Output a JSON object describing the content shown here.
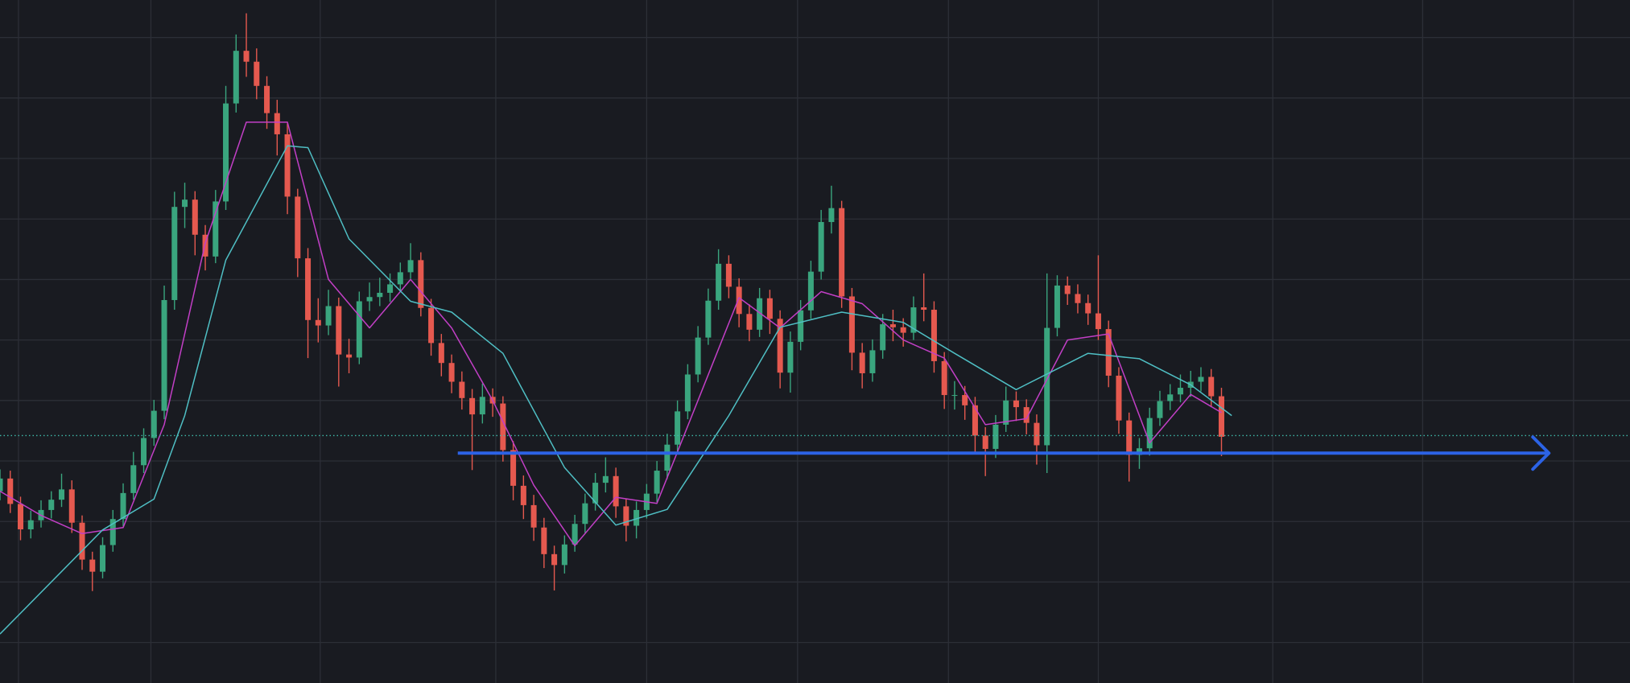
{
  "chart_data": {
    "type": "candlestick",
    "background": "#191b21",
    "grid": true,
    "grid_color": "#2c2f37",
    "up_color": "#3aa57e",
    "down_color": "#e5594f",
    "xlim": [
      0,
      158.8
    ],
    "ylim": [
      -6.7,
      106.2
    ],
    "xticks": [
      1.8,
      14.7,
      31.2,
      48.3,
      63,
      77.7,
      92.4,
      107,
      124,
      138.6,
      153.3
    ],
    "yticks": [
      0,
      10,
      20,
      30,
      40,
      50,
      60,
      70,
      80,
      90,
      100
    ],
    "open": [
      25.0,
      27.1,
      22.9,
      18.7,
      20.2,
      21.9,
      23.6,
      25.3,
      19.8,
      13.7,
      11.7,
      16.1,
      20.4,
      24.7,
      29.3,
      33.8,
      38.3,
      56.6,
      72.0,
      73.2,
      67.4,
      63.8,
      72.9,
      89.1,
      97.8,
      96.0,
      92.0,
      87.5,
      84.0,
      73.7,
      63.5,
      53.3,
      52.4,
      55.6,
      47.6,
      47.1,
      56.4,
      57.1,
      57.8,
      59.2,
      61.2,
      63.2,
      55.3,
      49.5,
      46.2,
      43.1,
      40.4,
      37.7,
      40.6,
      39.5,
      31.8,
      25.9,
      22.7,
      19.0,
      14.6,
      12.8,
      16.2,
      19.6,
      23.0,
      26.4,
      27.5,
      22.5,
      19.3,
      21.9,
      24.6,
      28.4,
      32.7,
      38.2,
      44.3,
      50.4,
      56.5,
      62.6,
      58.8,
      54.3,
      51.7,
      56.9,
      53.5,
      44.6,
      49.7,
      54.9,
      61.3,
      69.5,
      71.8,
      57.2,
      47.9,
      44.5,
      48.3,
      52.6,
      52.1,
      51.2,
      55.4,
      55.0,
      46.5,
      40.9,
      40.9,
      39.2,
      34.2,
      32.0,
      36.0,
      40.0,
      38.9,
      36.3,
      32.6,
      52.0,
      59.0,
      57.6,
      56.1,
      54.4,
      51.8,
      44.1,
      36.7,
      31.0,
      32.1,
      37.1,
      39.9,
      41.0,
      42.1,
      43.1,
      43.9,
      40.7
    ],
    "close": [
      27.1,
      22.9,
      18.7,
      20.2,
      21.9,
      23.6,
      25.3,
      19.8,
      13.7,
      11.7,
      16.1,
      20.4,
      24.7,
      29.3,
      33.8,
      38.3,
      56.6,
      72.0,
      73.2,
      67.4,
      63.8,
      72.9,
      89.1,
      97.8,
      96.0,
      92.0,
      87.5,
      84.0,
      73.7,
      63.5,
      53.3,
      52.4,
      55.6,
      47.6,
      47.1,
      56.4,
      57.1,
      57.8,
      59.2,
      61.2,
      63.2,
      55.3,
      49.5,
      46.2,
      43.1,
      40.4,
      37.7,
      40.6,
      39.5,
      31.8,
      25.9,
      22.7,
      19.0,
      14.6,
      12.8,
      16.2,
      19.6,
      23.0,
      26.4,
      27.5,
      22.5,
      19.3,
      21.9,
      24.6,
      28.4,
      32.7,
      38.2,
      44.3,
      50.4,
      56.5,
      62.6,
      58.8,
      54.3,
      51.7,
      56.9,
      53.5,
      44.6,
      49.7,
      54.9,
      61.3,
      69.5,
      71.8,
      57.2,
      47.9,
      44.5,
      48.3,
      52.6,
      52.1,
      51.2,
      55.4,
      55.0,
      46.5,
      40.9,
      40.9,
      39.2,
      34.2,
      32.0,
      36.0,
      40.0,
      38.9,
      36.3,
      32.6,
      52.0,
      59.0,
      57.6,
      56.1,
      54.4,
      51.8,
      44.1,
      36.7,
      31.0,
      32.1,
      37.1,
      39.9,
      41.0,
      42.1,
      43.1,
      43.9,
      40.7,
      34.0
    ],
    "high": [
      28.6,
      28.4,
      24.1,
      21.8,
      23.5,
      25.0,
      27.9,
      26.8,
      21.0,
      15.0,
      17.4,
      21.9,
      26.3,
      31.5,
      35.4,
      40.1,
      59.0,
      74.5,
      76.0,
      74.6,
      69.0,
      74.8,
      92.0,
      100.5,
      104.0,
      98.2,
      93.6,
      89.7,
      85.8,
      75.0,
      65.2,
      56.9,
      58.3,
      57.0,
      50.2,
      58.0,
      59.5,
      60.3,
      61.0,
      62.8,
      66.0,
      64.5,
      56.8,
      51.0,
      47.6,
      44.8,
      41.9,
      42.8,
      42.0,
      40.7,
      33.3,
      27.6,
      24.4,
      20.6,
      16.0,
      17.7,
      21.1,
      24.6,
      28.0,
      30.6,
      28.9,
      23.8,
      23.3,
      26.2,
      30.0,
      34.5,
      40.0,
      46.0,
      52.3,
      58.5,
      65.0,
      64.0,
      60.2,
      55.9,
      58.6,
      58.3,
      54.9,
      51.4,
      56.6,
      63.1,
      71.5,
      75.5,
      73.0,
      58.6,
      49.5,
      50.1,
      54.3,
      55.0,
      53.6,
      57.2,
      61.0,
      56.4,
      48.0,
      43.2,
      42.4,
      40.6,
      35.6,
      37.6,
      42.3,
      41.5,
      40.2,
      37.7,
      61.0,
      60.7,
      60.5,
      59.2,
      57.5,
      64.0,
      53.2,
      45.5,
      38.0,
      33.8,
      38.8,
      41.6,
      42.7,
      44.3,
      44.9,
      45.5,
      45.2,
      42.1
    ],
    "low": [
      23.5,
      21.4,
      16.9,
      17.2,
      19.0,
      20.5,
      22.4,
      18.1,
      12.0,
      8.5,
      10.6,
      15.0,
      19.2,
      23.6,
      28.0,
      32.5,
      36.9,
      55.0,
      68.5,
      64.0,
      61.5,
      62.7,
      71.5,
      87.6,
      93.5,
      89.8,
      84.9,
      80.5,
      70.8,
      60.4,
      47.0,
      49.6,
      50.8,
      42.3,
      44.5,
      46.0,
      54.8,
      55.6,
      56.3,
      58.0,
      60.1,
      53.9,
      47.4,
      44.0,
      41.2,
      38.5,
      28.5,
      36.2,
      37.3,
      29.9,
      23.5,
      20.4,
      16.8,
      12.3,
      8.6,
      11.4,
      15.0,
      18.1,
      21.8,
      24.8,
      20.6,
      16.7,
      17.2,
      20.5,
      23.2,
      27.0,
      31.5,
      36.9,
      43.0,
      49.2,
      55.0,
      56.9,
      52.1,
      49.8,
      50.5,
      51.0,
      42.0,
      41.3,
      48.3,
      53.5,
      60.0,
      67.6,
      55.3,
      45.0,
      42.0,
      43.1,
      46.9,
      49.8,
      48.9,
      50.0,
      53.1,
      44.6,
      38.6,
      38.5,
      36.8,
      31.5,
      27.5,
      30.5,
      34.8,
      36.6,
      34.4,
      29.4,
      28.0,
      50.6,
      55.8,
      54.4,
      52.5,
      50.0,
      42.2,
      34.5,
      26.6,
      28.7,
      30.9,
      35.8,
      38.4,
      39.7,
      40.6,
      41.5,
      38.9,
      30.8
    ],
    "overlays": [
      {
        "color": "#c23fc6",
        "x": [
          0,
          4,
          8,
          12,
          16,
          20,
          24,
          28,
          32,
          36,
          40,
          44,
          48,
          52,
          56,
          60,
          64,
          68,
          72,
          76,
          80,
          84,
          88,
          92,
          96,
          100,
          104,
          108,
          112,
          116,
          119
        ],
        "values": [
          25,
          21,
          18,
          19,
          36,
          66,
          86,
          86,
          60,
          52,
          60,
          52,
          40,
          26,
          16,
          24,
          23,
          40,
          57,
          52,
          58,
          56,
          50,
          47,
          36,
          37,
          50,
          51,
          33,
          41,
          38
        ]
      },
      {
        "color": "#4fbfc4",
        "x": [
          0,
          10,
          15,
          18,
          22,
          28,
          30,
          34,
          40,
          44,
          49,
          55,
          60,
          65,
          71,
          76,
          82,
          88,
          93,
          99,
          106,
          111,
          116,
          120
        ],
        "values": [
          1.4,
          18.6,
          23.7,
          37.5,
          63.2,
          82.1,
          81.8,
          66.7,
          56.4,
          54.6,
          47.8,
          28.9,
          19.4,
          22.0,
          37.5,
          52.1,
          54.6,
          52.9,
          47.8,
          41.8,
          47.8,
          46.9,
          42.6,
          37.5
        ]
      }
    ],
    "price_line": {
      "value": 34.2,
      "color": "#3fb8a8"
    },
    "hline": {
      "value": 31.3,
      "x": [
        44.6,
        150.9
      ],
      "color": "#2c63e6"
    }
  }
}
